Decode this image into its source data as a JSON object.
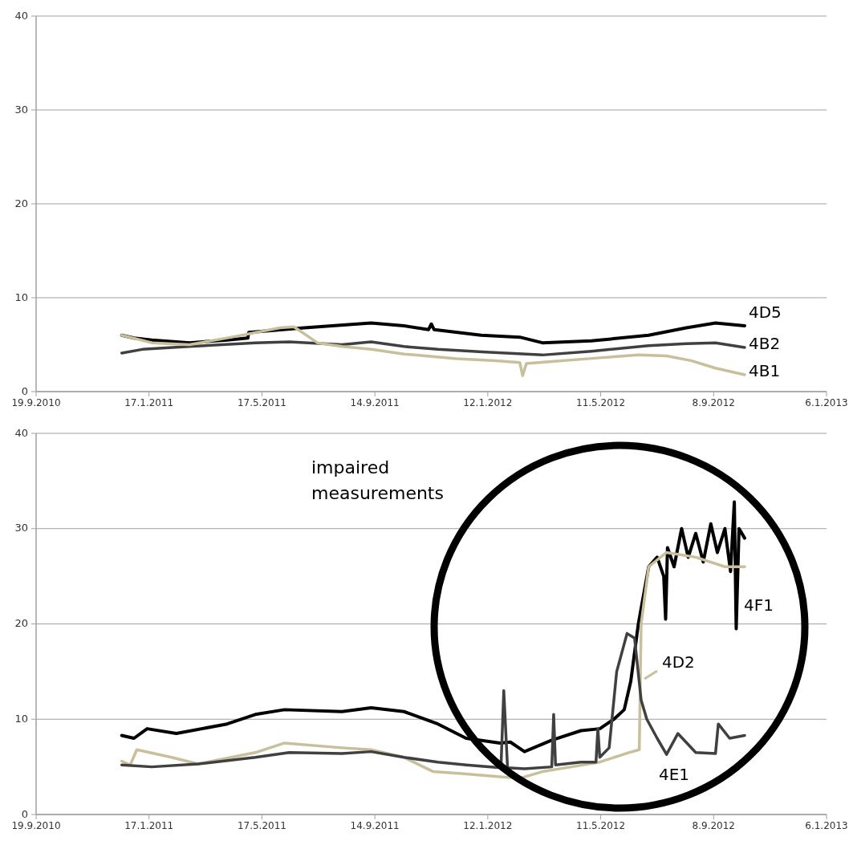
{
  "chart_data": [
    {
      "type": "line",
      "xlim": [
        "2010-09-19",
        "2013-01-06"
      ],
      "ylim": [
        0,
        40
      ],
      "yticks": [
        0,
        10,
        20,
        30,
        40
      ],
      "xticks": [
        {
          "value": "2010-09-19",
          "label": "19.9.2010"
        },
        {
          "value": "2011-01-17",
          "label": "17.1.2011"
        },
        {
          "value": "2011-05-17",
          "label": "17.5.2011"
        },
        {
          "value": "2011-09-14",
          "label": "14.9.2011"
        },
        {
          "value": "2012-01-12",
          "label": "12.1.2012"
        },
        {
          "value": "2012-05-11",
          "label": "11.5.2012"
        },
        {
          "value": "2012-09-08",
          "label": "8.9.2012"
        },
        {
          "value": "2013-01-06",
          "label": "6.1.2013"
        }
      ],
      "grid": "y",
      "line_style": "solid",
      "marker": "none",
      "series": [
        {
          "name": "4D5",
          "color": "#000000",
          "x": [
            "2010-12-19",
            "2011-01-01",
            "2011-01-20",
            "2011-03-01",
            "2011-04-10",
            "2011-05-02",
            "2011-05-03",
            "2011-07-01",
            "2011-09-10",
            "2011-10-15",
            "2011-11-10",
            "2011-11-13",
            "2011-11-16",
            "2012-01-05",
            "2012-02-15",
            "2012-03-10",
            "2012-05-01",
            "2012-07-01",
            "2012-08-10",
            "2012-09-10",
            "2012-10-11"
          ],
          "values": [
            6.0,
            5.7,
            5.5,
            5.2,
            5.5,
            5.7,
            6.3,
            6.8,
            7.3,
            7.0,
            6.6,
            7.2,
            6.6,
            6.0,
            5.8,
            5.2,
            5.4,
            6.0,
            6.8,
            7.3,
            7.0
          ]
        },
        {
          "name": "4B2",
          "color": "#404040",
          "x": [
            "2010-12-19",
            "2011-01-10",
            "2011-03-01",
            "2011-05-10",
            "2011-06-15",
            "2011-08-10",
            "2011-09-10",
            "2011-10-15",
            "2011-11-20",
            "2012-01-10",
            "2012-03-10",
            "2012-05-01",
            "2012-07-01",
            "2012-08-10",
            "2012-09-10",
            "2012-10-11"
          ],
          "values": [
            4.1,
            4.5,
            4.8,
            5.2,
            5.3,
            5.0,
            5.3,
            4.8,
            4.5,
            4.2,
            3.9,
            4.3,
            4.9,
            5.1,
            5.2,
            4.7
          ]
        },
        {
          "name": "4B1",
          "color": "#c8bf9c",
          "x": [
            "2010-12-19",
            "2011-01-20",
            "2011-03-01",
            "2011-04-15",
            "2011-06-05",
            "2011-06-20",
            "2011-07-15",
            "2011-08-10",
            "2011-09-10",
            "2011-10-15",
            "2011-12-10",
            "2012-01-20",
            "2012-02-15",
            "2012-02-18",
            "2012-02-22",
            "2012-03-20",
            "2012-05-10",
            "2012-06-20",
            "2012-07-20",
            "2012-08-15",
            "2012-09-10",
            "2012-10-11"
          ],
          "values": [
            6.0,
            5.2,
            5.0,
            5.8,
            6.8,
            6.9,
            5.2,
            4.8,
            4.5,
            4.0,
            3.5,
            3.3,
            3.1,
            1.7,
            3.0,
            3.2,
            3.6,
            3.9,
            3.8,
            3.3,
            2.5,
            1.8
          ]
        }
      ]
    },
    {
      "type": "line",
      "xlim": [
        "2010-09-19",
        "2013-01-06"
      ],
      "ylim": [
        0,
        40
      ],
      "yticks": [
        0,
        10,
        20,
        30,
        40
      ],
      "xticks": [
        {
          "value": "2010-09-19",
          "label": "19.9.2010"
        },
        {
          "value": "2011-01-17",
          "label": "17.1.2011"
        },
        {
          "value": "2011-05-17",
          "label": "17.5.2011"
        },
        {
          "value": "2011-09-14",
          "label": "14.9.2011"
        },
        {
          "value": "2012-01-12",
          "label": "12.1.2012"
        },
        {
          "value": "2012-05-11",
          "label": "11.5.2012"
        },
        {
          "value": "2012-09-08",
          "label": "8.9.2012"
        },
        {
          "value": "2013-01-06",
          "label": "6.1.2013"
        }
      ],
      "grid": "y",
      "line_style": "solid",
      "marker": "none",
      "annotations": [
        "impaired measurements"
      ],
      "series": [
        {
          "name": "4F1",
          "color": "#000000",
          "x": [
            "2010-12-19",
            "2011-01-01",
            "2011-01-15",
            "2011-02-15",
            "2011-04-10",
            "2011-05-10",
            "2011-06-10",
            "2011-08-10",
            "2011-09-10",
            "2011-10-15",
            "2011-11-20",
            "2011-12-20",
            "2012-01-25",
            "2012-02-05",
            "2012-02-20",
            "2012-03-20",
            "2012-04-20",
            "2012-05-10",
            "2012-05-25",
            "2012-06-05",
            "2012-06-12",
            "2012-06-20",
            "2012-07-01",
            "2012-07-10",
            "2012-07-17",
            "2012-07-19",
            "2012-07-21",
            "2012-07-28",
            "2012-08-05",
            "2012-08-12",
            "2012-08-20",
            "2012-08-28",
            "2012-09-05",
            "2012-09-12",
            "2012-09-20",
            "2012-09-26",
            "2012-09-30",
            "2012-10-02",
            "2012-10-05",
            "2012-10-11"
          ],
          "values": [
            8.3,
            8.0,
            9.0,
            8.5,
            9.5,
            10.5,
            11.0,
            10.8,
            11.2,
            10.8,
            9.5,
            8.0,
            7.5,
            7.6,
            6.6,
            7.8,
            8.8,
            9.0,
            10.0,
            11.0,
            14.0,
            20.0,
            26.0,
            27.0,
            25.0,
            20.5,
            28.0,
            26.0,
            30.0,
            27.0,
            29.5,
            26.5,
            30.5,
            27.5,
            30.0,
            25.5,
            32.8,
            19.5,
            30.0,
            29.0
          ]
        },
        {
          "name": "4D2",
          "color": "#c8bf9c",
          "x": [
            "2010-12-19",
            "2010-12-28",
            "2011-01-04",
            "2011-02-10",
            "2011-03-10",
            "2011-05-10",
            "2011-06-10",
            "2011-08-10",
            "2011-09-10",
            "2011-10-15",
            "2011-11-15",
            "2011-12-15",
            "2012-01-20",
            "2012-02-15",
            "2012-03-10",
            "2012-04-10",
            "2012-05-10",
            "2012-06-10",
            "2012-06-21",
            "2012-06-23",
            "2012-07-01",
            "2012-07-20",
            "2012-08-20",
            "2012-09-20",
            "2012-10-11"
          ],
          "values": [
            5.6,
            5.2,
            6.8,
            6.0,
            5.3,
            6.5,
            7.5,
            7.0,
            6.8,
            6.0,
            4.5,
            4.3,
            4.0,
            3.8,
            4.5,
            5.0,
            5.5,
            6.5,
            6.8,
            20.0,
            26.0,
            27.5,
            27.0,
            26.0,
            26.0
          ]
        },
        {
          "name": "4E1",
          "color": "#404040",
          "x": [
            "2010-12-19",
            "2011-01-20",
            "2011-03-10",
            "2011-05-10",
            "2011-06-15",
            "2011-08-10",
            "2011-09-10",
            "2011-10-15",
            "2011-11-20",
            "2011-12-20",
            "2012-01-26",
            "2012-01-29",
            "2012-02-02",
            "2012-02-20",
            "2012-03-20",
            "2012-03-22",
            "2012-03-24",
            "2012-04-20",
            "2012-05-06",
            "2012-05-08",
            "2012-05-10",
            "2012-05-20",
            "2012-05-28",
            "2012-06-08",
            "2012-06-16",
            "2012-06-23",
            "2012-06-29",
            "2012-07-10",
            "2012-07-20",
            "2012-08-01",
            "2012-08-20",
            "2012-09-10",
            "2012-09-13",
            "2012-09-25",
            "2012-10-11"
          ],
          "values": [
            5.2,
            5.0,
            5.3,
            6.0,
            6.5,
            6.4,
            6.6,
            6.0,
            5.5,
            5.2,
            4.9,
            13.0,
            4.9,
            4.8,
            5.0,
            10.5,
            5.2,
            5.5,
            5.5,
            9.0,
            6.0,
            7.0,
            15.0,
            19.0,
            18.5,
            12.0,
            10.0,
            8.0,
            6.3,
            8.5,
            6.5,
            6.4,
            9.5,
            8.0,
            8.3
          ]
        }
      ]
    }
  ]
}
